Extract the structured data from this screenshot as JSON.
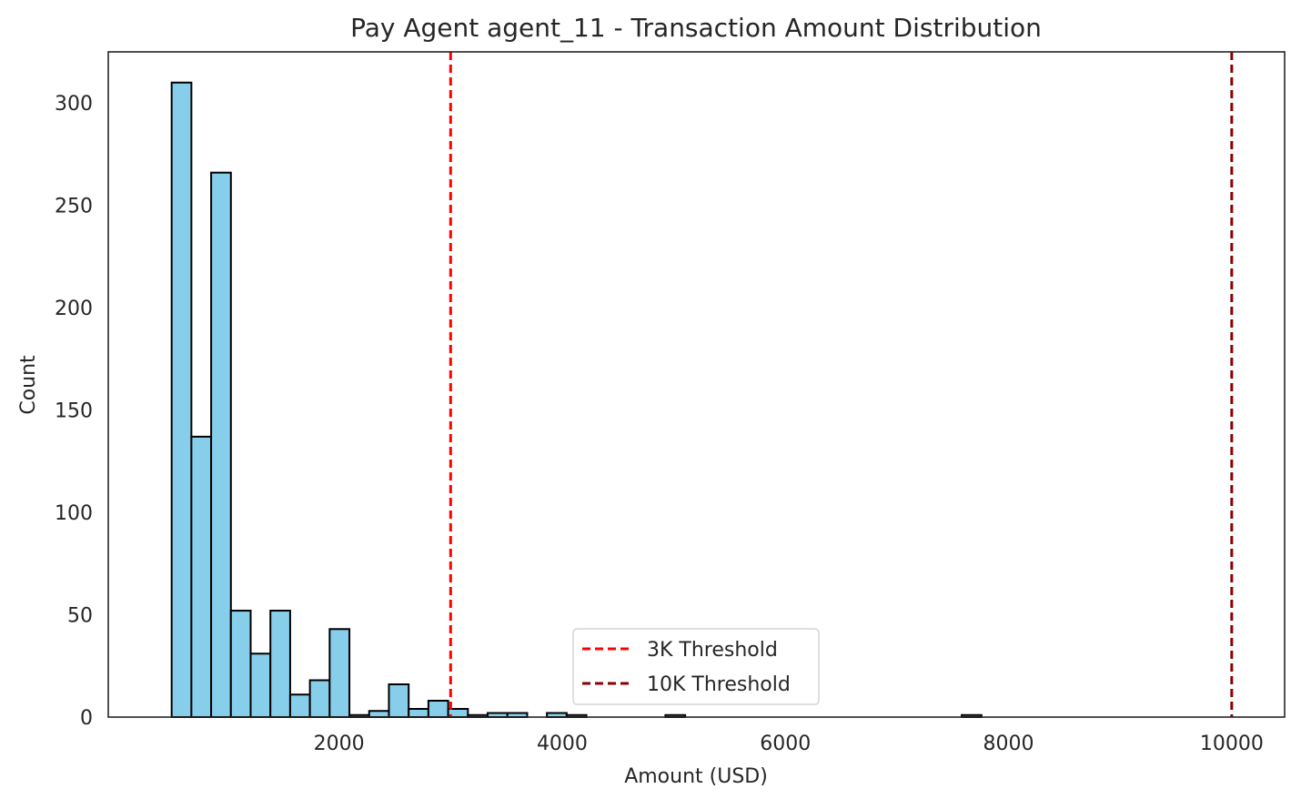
{
  "chart_data": {
    "type": "histogram",
    "title": "Pay Agent agent_11 - Transaction Amount Distribution",
    "xlabel": "Amount (USD)",
    "ylabel": "Count",
    "xlim": [
      -68,
      10474
    ],
    "ylim": [
      0,
      325
    ],
    "x_ticks": [
      2000,
      4000,
      6000,
      8000,
      10000
    ],
    "y_ticks": [
      0,
      50,
      100,
      150,
      200,
      250,
      300
    ],
    "bin_width": 177,
    "bin_start": 500,
    "counts": [
      310,
      137,
      266,
      52,
      31,
      52,
      11,
      18,
      43,
      1,
      3,
      16,
      4,
      8,
      4,
      1,
      2,
      2,
      0,
      2,
      1,
      0,
      0,
      0,
      0,
      1,
      0,
      0,
      0,
      0,
      0,
      0,
      0,
      0,
      0,
      0,
      0,
      0,
      0,
      0,
      1
    ],
    "bar_color": "#87ceeb",
    "edge_color": "#000000",
    "thresholds": [
      {
        "name": "3K Threshold",
        "value": 3000,
        "color": "#ff0000"
      },
      {
        "name": "10K Threshold",
        "value": 10000,
        "color": "#8b0000"
      }
    ],
    "legend_position": "lower center",
    "grid": false
  }
}
